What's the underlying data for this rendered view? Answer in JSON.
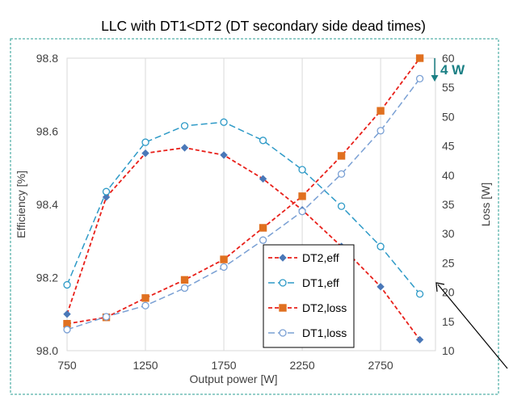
{
  "chart_data": {
    "type": "line",
    "title": "LLC with DT1<DT2 (DT secondary side dead times)",
    "xlabel": "Output power [W]",
    "ylabel": "Efficiency [%]",
    "y2label": "Loss [W]",
    "x_ticks": [
      "750",
      "1250",
      "1750",
      "2250",
      "2750"
    ],
    "y_ticks": [
      "98.0",
      "98.2",
      "98.4",
      "98.6",
      "98.8"
    ],
    "y2_ticks": [
      "10",
      "15",
      "20",
      "25",
      "30",
      "35",
      "40",
      "45",
      "50",
      "55",
      "60"
    ],
    "xlim": [
      750,
      3100
    ],
    "ylim": [
      98.0,
      98.8
    ],
    "y2lim": [
      10,
      60
    ],
    "grid": "vertical",
    "legend_position": "bottom-right",
    "x": [
      750,
      1000,
      1250,
      1500,
      1750,
      2000,
      2250,
      2500,
      2750,
      3000
    ],
    "series": [
      {
        "name": "DT2,eff",
        "axis": "left",
        "color": "#E8201A",
        "marker_color": "#4A78B8",
        "marker": "diamond",
        "dash": "short",
        "values": [
          98.1,
          98.42,
          98.54,
          98.555,
          98.535,
          98.47,
          98.385,
          98.285,
          98.175,
          98.03
        ]
      },
      {
        "name": "DT1,eff",
        "axis": "left",
        "color": "#2E9AC7",
        "marker_color": "#2E9AC7",
        "marker": "circle-open",
        "dash": "long",
        "values": [
          98.18,
          98.435,
          98.57,
          98.615,
          98.625,
          98.575,
          98.495,
          98.395,
          98.285,
          98.155
        ]
      },
      {
        "name": "DT2,loss",
        "axis": "right",
        "color": "#E8201A",
        "marker_color": "#E07020",
        "marker": "square",
        "dash": "short",
        "values": [
          14.6,
          15.7,
          19.0,
          22.1,
          25.6,
          31.0,
          36.4,
          43.3,
          51.0,
          60.0
        ]
      },
      {
        "name": "DT1,loss",
        "axis": "right",
        "color": "#7AA0D4",
        "marker_color": "#7AA0D4",
        "marker": "circle-open",
        "dash": "long",
        "values": [
          13.6,
          15.8,
          17.7,
          20.7,
          24.3,
          28.9,
          33.8,
          40.2,
          47.6,
          56.5
        ]
      }
    ],
    "annotation": {
      "text": "4 W",
      "color": "#1A7F84"
    }
  }
}
